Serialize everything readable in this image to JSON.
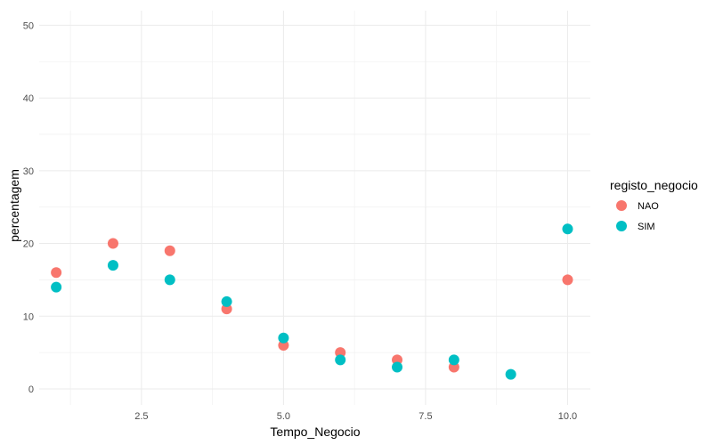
{
  "chart_data": {
    "type": "scatter",
    "title": "",
    "xlabel": "Tempo_Negocio",
    "ylabel": "percentagem",
    "xlim": [
      0.7,
      10.4
    ],
    "ylim": [
      -2.2,
      52
    ],
    "x_ticks": [
      2.5,
      5.0,
      7.5,
      10.0
    ],
    "x_tick_labels": [
      "2.5",
      "5.0",
      "7.5",
      "10.0"
    ],
    "y_ticks": [
      0,
      10,
      20,
      30,
      40,
      50
    ],
    "y_tick_labels": [
      "0",
      "10",
      "20",
      "30",
      "40",
      "50"
    ],
    "grid": true,
    "legend": {
      "title": "registo_negocio",
      "placement": "right"
    },
    "series": [
      {
        "name": "NAO",
        "color": "#F8766D",
        "points": [
          {
            "x": 1,
            "y": 16
          },
          {
            "x": 2,
            "y": 20
          },
          {
            "x": 3,
            "y": 19
          },
          {
            "x": 4,
            "y": 11
          },
          {
            "x": 5,
            "y": 6
          },
          {
            "x": 6,
            "y": 5
          },
          {
            "x": 7,
            "y": 4
          },
          {
            "x": 8,
            "y": 3
          },
          {
            "x": 10,
            "y": 15
          }
        ]
      },
      {
        "name": "SIM",
        "color": "#00BFC4",
        "points": [
          {
            "x": 1,
            "y": 14
          },
          {
            "x": 2,
            "y": 17
          },
          {
            "x": 3,
            "y": 15
          },
          {
            "x": 4,
            "y": 12
          },
          {
            "x": 5,
            "y": 7
          },
          {
            "x": 6,
            "y": 4
          },
          {
            "x": 7,
            "y": 3
          },
          {
            "x": 8,
            "y": 4
          },
          {
            "x": 9,
            "y": 2
          },
          {
            "x": 10,
            "y": 22
          }
        ]
      }
    ]
  }
}
